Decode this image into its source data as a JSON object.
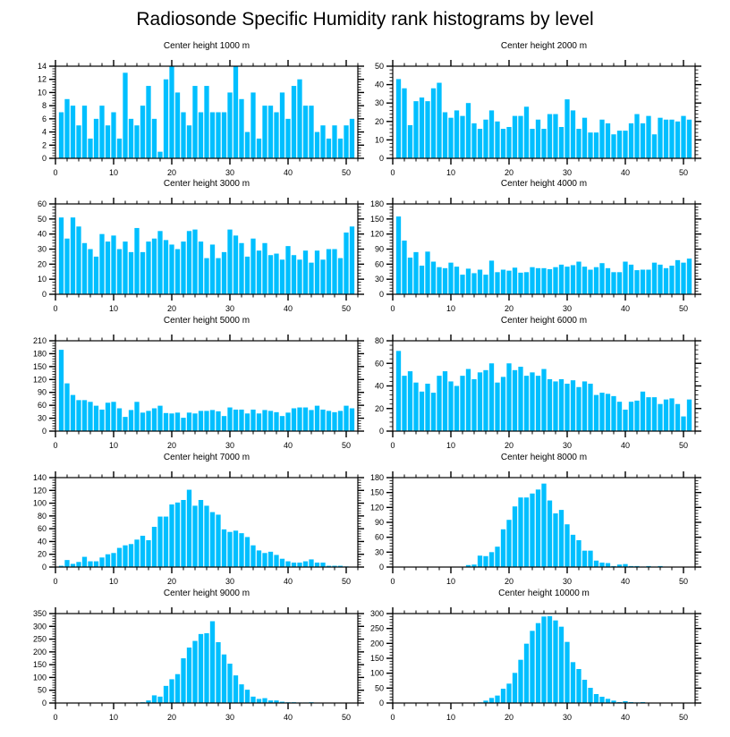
{
  "title": "Radiosonde Specific Humidity rank histograms by level",
  "colors": {
    "bar": "#00BFFF",
    "bar_edge": "#ffffff",
    "axis": "#000000"
  },
  "chart_data": [
    {
      "type": "bar",
      "title": "Center height 1000 m",
      "xlabel": "",
      "ylabel": "",
      "xlim": [
        0,
        52
      ],
      "ylim": [
        0,
        14
      ],
      "xticks": [
        0,
        10,
        20,
        30,
        40,
        50
      ],
      "yticks": [
        0,
        2,
        4,
        6,
        8,
        10,
        12,
        14
      ],
      "x": [
        1,
        2,
        3,
        4,
        5,
        6,
        7,
        8,
        9,
        10,
        11,
        12,
        13,
        14,
        15,
        16,
        17,
        18,
        19,
        20,
        21,
        22,
        23,
        24,
        25,
        26,
        27,
        28,
        29,
        30,
        31,
        32,
        33,
        34,
        35,
        36,
        37,
        38,
        39,
        40,
        41,
        42,
        43,
        44,
        45,
        46,
        47,
        48,
        49,
        50,
        51
      ],
      "values": [
        7,
        9,
        8,
        5,
        8,
        3,
        6,
        8,
        5,
        7,
        3,
        13,
        6,
        5,
        8,
        11,
        6,
        1,
        12,
        14,
        10,
        7,
        5,
        11,
        7,
        11,
        7,
        7,
        7,
        10,
        14,
        9,
        4,
        10,
        3,
        8,
        8,
        7,
        10,
        6,
        11,
        12,
        8,
        8,
        4,
        5,
        3,
        5,
        3,
        5,
        6
      ]
    },
    {
      "type": "bar",
      "title": "Center height 2000 m",
      "xlabel": "",
      "ylabel": "",
      "xlim": [
        0,
        52
      ],
      "ylim": [
        0,
        50
      ],
      "xticks": [
        0,
        10,
        20,
        30,
        40,
        50
      ],
      "yticks": [
        0,
        10,
        20,
        30,
        40,
        50
      ],
      "x": [
        1,
        2,
        3,
        4,
        5,
        6,
        7,
        8,
        9,
        10,
        11,
        12,
        13,
        14,
        15,
        16,
        17,
        18,
        19,
        20,
        21,
        22,
        23,
        24,
        25,
        26,
        27,
        28,
        29,
        30,
        31,
        32,
        33,
        34,
        35,
        36,
        37,
        38,
        39,
        40,
        41,
        42,
        43,
        44,
        45,
        46,
        47,
        48,
        49,
        50,
        51
      ],
      "values": [
        43,
        38,
        18,
        31,
        33,
        31,
        38,
        41,
        25,
        22,
        26,
        23,
        30,
        19,
        16,
        21,
        26,
        20,
        16,
        17,
        23,
        23,
        28,
        16,
        21,
        16,
        24,
        24,
        17,
        32,
        26,
        16,
        22,
        14,
        14,
        21,
        19,
        13,
        15,
        15,
        19,
        24,
        19,
        23,
        13,
        22,
        21,
        21,
        20,
        23,
        21
      ]
    },
    {
      "type": "bar",
      "title": "Center height 3000 m",
      "xlabel": "",
      "ylabel": "",
      "xlim": [
        0,
        52
      ],
      "ylim": [
        0,
        60
      ],
      "xticks": [
        0,
        10,
        20,
        30,
        40,
        50
      ],
      "yticks": [
        0,
        10,
        20,
        30,
        40,
        50,
        60
      ],
      "x": [
        1,
        2,
        3,
        4,
        5,
        6,
        7,
        8,
        9,
        10,
        11,
        12,
        13,
        14,
        15,
        16,
        17,
        18,
        19,
        20,
        21,
        22,
        23,
        24,
        25,
        26,
        27,
        28,
        29,
        30,
        31,
        32,
        33,
        34,
        35,
        36,
        37,
        38,
        39,
        40,
        41,
        42,
        43,
        44,
        45,
        46,
        47,
        48,
        49,
        50,
        51
      ],
      "values": [
        51,
        37,
        51,
        45,
        34,
        30,
        25,
        40,
        35,
        39,
        30,
        35,
        28,
        44,
        28,
        35,
        37,
        42,
        36,
        33,
        30,
        35,
        42,
        43,
        35,
        24,
        33,
        24,
        28,
        43,
        39,
        34,
        25,
        37,
        29,
        34,
        26,
        27,
        23,
        32,
        26,
        23,
        29,
        21,
        29,
        23,
        30,
        30,
        24,
        41,
        45
      ]
    },
    {
      "type": "bar",
      "title": "Center height 4000 m",
      "xlabel": "",
      "ylabel": "",
      "xlim": [
        0,
        52
      ],
      "ylim": [
        0,
        180
      ],
      "xticks": [
        0,
        10,
        20,
        30,
        40,
        50
      ],
      "yticks": [
        0,
        30,
        60,
        90,
        120,
        150,
        180
      ],
      "x": [
        1,
        2,
        3,
        4,
        5,
        6,
        7,
        8,
        9,
        10,
        11,
        12,
        13,
        14,
        15,
        16,
        17,
        18,
        19,
        20,
        21,
        22,
        23,
        24,
        25,
        26,
        27,
        28,
        29,
        30,
        31,
        32,
        33,
        34,
        35,
        36,
        37,
        38,
        39,
        40,
        41,
        42,
        43,
        44,
        45,
        46,
        47,
        48,
        49,
        50,
        51
      ],
      "values": [
        155,
        107,
        73,
        84,
        57,
        85,
        65,
        54,
        52,
        63,
        55,
        39,
        51,
        42,
        49,
        39,
        67,
        44,
        49,
        47,
        53,
        43,
        44,
        54,
        52,
        52,
        50,
        54,
        59,
        55,
        58,
        65,
        55,
        49,
        54,
        62,
        52,
        44,
        44,
        65,
        59,
        48,
        49,
        49,
        63,
        59,
        52,
        57,
        68,
        63,
        71
      ]
    },
    {
      "type": "bar",
      "title": "Center height 5000 m",
      "xlabel": "",
      "ylabel": "",
      "xlim": [
        0,
        52
      ],
      "ylim": [
        0,
        210
      ],
      "xticks": [
        0,
        10,
        20,
        30,
        40,
        50
      ],
      "yticks": [
        0,
        30,
        60,
        90,
        120,
        150,
        180,
        210
      ],
      "x": [
        1,
        2,
        3,
        4,
        5,
        6,
        7,
        8,
        9,
        10,
        11,
        12,
        13,
        14,
        15,
        16,
        17,
        18,
        19,
        20,
        21,
        22,
        23,
        24,
        25,
        26,
        27,
        28,
        29,
        30,
        31,
        32,
        33,
        34,
        35,
        36,
        37,
        38,
        39,
        40,
        41,
        42,
        43,
        44,
        45,
        46,
        47,
        48,
        49,
        50,
        51
      ],
      "values": [
        189,
        111,
        84,
        72,
        72,
        68,
        59,
        50,
        66,
        68,
        53,
        33,
        49,
        68,
        43,
        47,
        53,
        59,
        42,
        41,
        43,
        31,
        43,
        41,
        47,
        47,
        49,
        46,
        35,
        55,
        50,
        50,
        41,
        50,
        41,
        49,
        47,
        44,
        35,
        43,
        53,
        55,
        55,
        49,
        59,
        50,
        47,
        44,
        47,
        59,
        53
      ]
    },
    {
      "type": "bar",
      "title": "Center height 6000 m",
      "xlabel": "",
      "ylabel": "",
      "xlim": [
        0,
        52
      ],
      "ylim": [
        0,
        80
      ],
      "xticks": [
        0,
        10,
        20,
        30,
        40,
        50
      ],
      "yticks": [
        0,
        20,
        40,
        60,
        80
      ],
      "x": [
        1,
        2,
        3,
        4,
        5,
        6,
        7,
        8,
        9,
        10,
        11,
        12,
        13,
        14,
        15,
        16,
        17,
        18,
        19,
        20,
        21,
        22,
        23,
        24,
        25,
        26,
        27,
        28,
        29,
        30,
        31,
        32,
        33,
        34,
        35,
        36,
        37,
        38,
        39,
        40,
        41,
        42,
        43,
        44,
        45,
        46,
        47,
        48,
        49,
        50,
        51
      ],
      "values": [
        71,
        49,
        53,
        43,
        35,
        42,
        34,
        49,
        53,
        44,
        40,
        49,
        55,
        46,
        52,
        54,
        60,
        43,
        48,
        60,
        54,
        57,
        49,
        52,
        49,
        55,
        46,
        44,
        46,
        42,
        45,
        39,
        44,
        42,
        32,
        34,
        33,
        31,
        26,
        19,
        26,
        27,
        35,
        30,
        30,
        24,
        28,
        29,
        24,
        13,
        28
      ]
    },
    {
      "type": "bar",
      "title": "Center height 7000 m",
      "xlabel": "",
      "ylabel": "",
      "xlim": [
        0,
        52
      ],
      "ylim": [
        0,
        140
      ],
      "xticks": [
        0,
        10,
        20,
        30,
        40,
        50
      ],
      "yticks": [
        0,
        20,
        40,
        60,
        80,
        100,
        120,
        140
      ],
      "x": [
        1,
        2,
        3,
        4,
        5,
        6,
        7,
        8,
        9,
        10,
        11,
        12,
        13,
        14,
        15,
        16,
        17,
        18,
        19,
        20,
        21,
        22,
        23,
        24,
        25,
        26,
        27,
        28,
        29,
        30,
        31,
        32,
        33,
        34,
        35,
        36,
        37,
        38,
        39,
        40,
        41,
        42,
        43,
        44,
        45,
        46,
        47,
        48,
        49,
        50,
        51
      ],
      "values": [
        2,
        11,
        5,
        8,
        16,
        9,
        9,
        15,
        20,
        22,
        30,
        34,
        36,
        43,
        49,
        42,
        63,
        79,
        79,
        98,
        101,
        105,
        121,
        96,
        105,
        96,
        86,
        82,
        59,
        55,
        57,
        53,
        47,
        34,
        26,
        22,
        24,
        19,
        13,
        9,
        7,
        7,
        9,
        12,
        7,
        7,
        2,
        2,
        2,
        1,
        0
      ]
    },
    {
      "type": "bar",
      "title": "Center height 8000 m",
      "xlabel": "",
      "ylabel": "",
      "xlim": [
        0,
        52
      ],
      "ylim": [
        0,
        180
      ],
      "xticks": [
        0,
        10,
        20,
        30,
        40,
        50
      ],
      "yticks": [
        0,
        30,
        60,
        90,
        120,
        150,
        180
      ],
      "x": [
        1,
        2,
        3,
        4,
        5,
        6,
        7,
        8,
        9,
        10,
        11,
        12,
        13,
        14,
        15,
        16,
        17,
        18,
        19,
        20,
        21,
        22,
        23,
        24,
        25,
        26,
        27,
        28,
        29,
        30,
        31,
        32,
        33,
        34,
        35,
        36,
        37,
        38,
        39,
        40,
        41,
        42,
        43,
        44,
        45,
        46,
        47,
        48,
        49,
        50,
        51
      ],
      "values": [
        0,
        0,
        0,
        0,
        0,
        0,
        0,
        0,
        0,
        0,
        0,
        0,
        4,
        5,
        23,
        22,
        30,
        41,
        76,
        95,
        122,
        140,
        140,
        148,
        156,
        168,
        134,
        108,
        115,
        86,
        65,
        54,
        33,
        33,
        13,
        9,
        8,
        2,
        5,
        6,
        2,
        2,
        1,
        2,
        1,
        2,
        0,
        0,
        0,
        0,
        0
      ]
    },
    {
      "type": "bar",
      "title": "Center height 9000 m",
      "xlabel": "",
      "ylabel": "",
      "xlim": [
        0,
        52
      ],
      "ylim": [
        0,
        350
      ],
      "xticks": [
        0,
        10,
        20,
        30,
        40,
        50
      ],
      "yticks": [
        0,
        50,
        100,
        150,
        200,
        250,
        300,
        350
      ],
      "x": [
        1,
        2,
        3,
        4,
        5,
        6,
        7,
        8,
        9,
        10,
        11,
        12,
        13,
        14,
        15,
        16,
        17,
        18,
        19,
        20,
        21,
        22,
        23,
        24,
        25,
        26,
        27,
        28,
        29,
        30,
        31,
        32,
        33,
        34,
        35,
        36,
        37,
        38,
        39,
        40,
        41,
        42,
        43,
        44,
        45,
        46,
        47,
        48,
        49,
        50,
        51
      ],
      "values": [
        0,
        0,
        0,
        0,
        0,
        0,
        0,
        0,
        0,
        0,
        1,
        0,
        0,
        2,
        3,
        10,
        30,
        25,
        67,
        93,
        113,
        175,
        217,
        243,
        270,
        273,
        320,
        238,
        190,
        154,
        108,
        73,
        52,
        25,
        16,
        19,
        10,
        10,
        5,
        3,
        3,
        2,
        2,
        3,
        0,
        0,
        0,
        0,
        0,
        1,
        0
      ]
    },
    {
      "type": "bar",
      "title": "Center height 10000 m",
      "xlabel": "",
      "ylabel": "",
      "xlim": [
        0,
        52
      ],
      "ylim": [
        0,
        300
      ],
      "xticks": [
        0,
        10,
        20,
        30,
        40,
        50
      ],
      "yticks": [
        0,
        50,
        100,
        150,
        200,
        250,
        300
      ],
      "x": [
        1,
        2,
        3,
        4,
        5,
        6,
        7,
        8,
        9,
        10,
        11,
        12,
        13,
        14,
        15,
        16,
        17,
        18,
        19,
        20,
        21,
        22,
        23,
        24,
        25,
        26,
        27,
        28,
        29,
        30,
        31,
        32,
        33,
        34,
        35,
        36,
        37,
        38,
        39,
        40,
        41,
        42,
        43,
        44,
        45,
        46,
        47,
        48,
        49,
        50,
        51
      ],
      "values": [
        0,
        0,
        0,
        0,
        0,
        0,
        0,
        0,
        0,
        0,
        0,
        0,
        0,
        0,
        2,
        8,
        17,
        25,
        48,
        65,
        101,
        145,
        199,
        242,
        268,
        290,
        291,
        277,
        256,
        205,
        137,
        114,
        78,
        51,
        30,
        21,
        14,
        8,
        3,
        6,
        3,
        2,
        3,
        1,
        0,
        0,
        0,
        0,
        0,
        0,
        0
      ]
    }
  ]
}
